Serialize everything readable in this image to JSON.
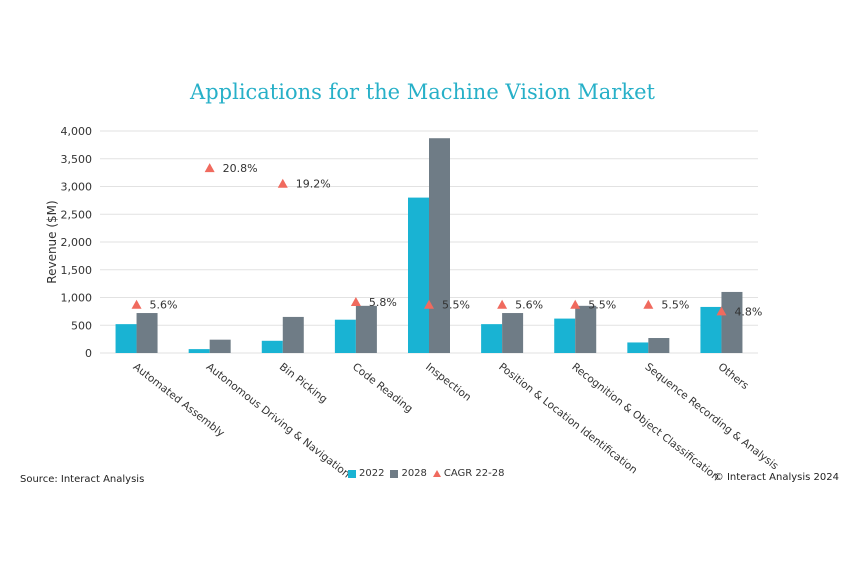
{
  "title": "Applications for the Machine Vision Market",
  "source": "Source: Interact Analysis",
  "copyright": "© Interact Analysis 2024",
  "legend": {
    "s2022": "2022",
    "s2028": "2028",
    "cagr": "CAGR 22-28"
  },
  "colors": {
    "s2022": "#19b3d3",
    "s2028": "#6f7c86",
    "cagr": "#f06a5e",
    "title": "#27b0c8"
  },
  "chart_data": {
    "type": "bar",
    "title": "Applications for the Machine Vision Market",
    "ylabel": "Revenue ($M)",
    "xlabel": "",
    "ylim": [
      0,
      4000
    ],
    "yticks": [
      "0",
      "500",
      "1,000",
      "1,500",
      "2,000",
      "2,500",
      "3,000",
      "3,500",
      "4,000"
    ],
    "categories": [
      "Automated Assembly",
      "Autonomous Driving & Navigation",
      "Bin Picking",
      "Code Reading",
      "Inspection",
      "Position & Location Identification",
      "Recognition & Object Classification",
      "Sequence Recording & Analysis",
      "Others"
    ],
    "series": [
      {
        "name": "2022",
        "values": [
          520,
          70,
          220,
          600,
          2800,
          520,
          620,
          190,
          830
        ]
      },
      {
        "name": "2028",
        "values": [
          720,
          240,
          650,
          850,
          3870,
          720,
          850,
          270,
          1100
        ]
      }
    ],
    "cagr": {
      "name": "CAGR 22-28",
      "labels": [
        "5.6%",
        "20.8%",
        "19.2%",
        "5.8%",
        "5.5%",
        "5.6%",
        "5.5%",
        "5.5%",
        "4.8%"
      ],
      "positions": [
        870,
        3330,
        3050,
        920,
        870,
        870,
        870,
        870,
        750
      ]
    },
    "grid": true,
    "legend_position": "bottom-center"
  }
}
